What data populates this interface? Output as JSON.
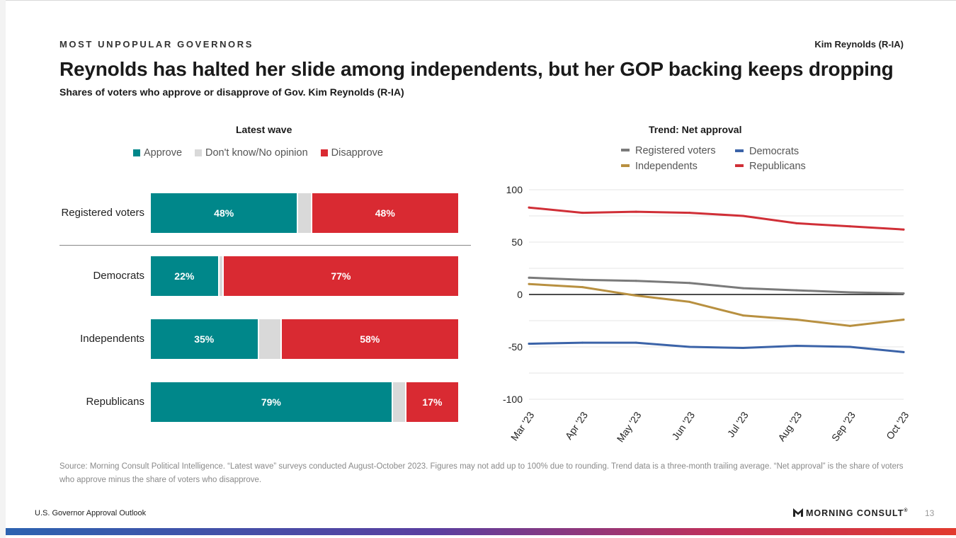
{
  "header": {
    "kicker": "MOST UNPOPULAR GOVERNORS",
    "top_right": "Kim Reynolds (R-IA)",
    "title": "Reynolds has halted her slide among independents, but her GOP backing keeps dropping",
    "subtitle": "Shares of voters who approve or disapprove of Gov. Kim Reynolds (R-IA)"
  },
  "colors": {
    "approve": "#00878a",
    "dont_know": "#d9d9d9",
    "disapprove": "#d92a32",
    "registered_voters": "#7a7a7a",
    "independents": "#b89040",
    "democrats": "#3b63a8",
    "republicans": "#d02f37"
  },
  "chart_data": [
    {
      "type": "bar",
      "title": "Latest wave",
      "orientation": "horizontal-stacked",
      "legend_position": "top",
      "categories": [
        "Registered voters",
        "Democrats",
        "Independents",
        "Republicans"
      ],
      "series": [
        {
          "name": "Approve",
          "values": [
            48,
            22,
            35,
            79
          ],
          "labels": [
            "48%",
            "22%",
            "35%",
            "79%"
          ]
        },
        {
          "name": "Don't know/No opinion",
          "values": [
            4,
            1,
            7,
            4
          ]
        },
        {
          "name": "Disapprove",
          "values": [
            48,
            77,
            58,
            17
          ],
          "labels": [
            "48%",
            "77%",
            "58%",
            "17%"
          ]
        }
      ]
    },
    {
      "type": "line",
      "title": "Trend: Net approval",
      "legend_position": "top",
      "x": [
        "Mar '23",
        "Apr '23",
        "May '23",
        "Jun '23",
        "Jul '23",
        "Aug '23",
        "Sep '23",
        "Oct '23"
      ],
      "ylim": [
        -100,
        100
      ],
      "yticks": [
        "100",
        "50",
        "0",
        "-50",
        "-100"
      ],
      "grid": true,
      "series": [
        {
          "name": "Registered voters",
          "values": [
            16,
            14,
            13,
            11,
            6,
            4,
            2,
            1
          ]
        },
        {
          "name": "Democrats",
          "values": [
            -47,
            -46,
            -46,
            -50,
            -51,
            -49,
            -50,
            -55
          ]
        },
        {
          "name": "Independents",
          "values": [
            10,
            7,
            -1,
            -7,
            -20,
            -24,
            -30,
            -24
          ]
        },
        {
          "name": "Republicans",
          "values": [
            83,
            78,
            79,
            78,
            75,
            68,
            65,
            62
          ]
        }
      ]
    }
  ],
  "source": "Source: Morning Consult Political Intelligence. “Latest wave” surveys conducted August-October 2023. Figures may not add up to 100% due to rounding. Trend data is a three-month trailing average. “Net approval” is the share of voters who approve minus the share of voters who disapprove.",
  "footer": {
    "left": "U.S. Governor Approval Outlook",
    "brand": "MORNING CONSULT",
    "page": "13"
  }
}
